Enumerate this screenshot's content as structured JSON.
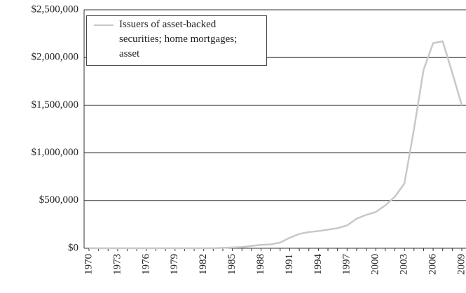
{
  "chart_data": {
    "type": "line",
    "x": [
      1970,
      1971,
      1972,
      1973,
      1974,
      1975,
      1976,
      1977,
      1978,
      1979,
      1980,
      1981,
      1982,
      1983,
      1984,
      1985,
      1986,
      1987,
      1988,
      1989,
      1990,
      1991,
      1992,
      1993,
      1994,
      1995,
      1996,
      1997,
      1998,
      1999,
      2000,
      2001,
      2002,
      2003,
      2004,
      2005,
      2006,
      2007,
      2008,
      2009
    ],
    "series": [
      {
        "name": "Issuers of asset-backed securities; home mortgages; asset",
        "color": "#c8c8c8",
        "values": [
          0,
          0,
          0,
          0,
          0,
          0,
          0,
          0,
          0,
          0,
          0,
          0,
          0,
          0,
          5000,
          8000,
          12000,
          25000,
          35000,
          40000,
          60000,
          110000,
          150000,
          170000,
          180000,
          195000,
          210000,
          240000,
          310000,
          350000,
          380000,
          450000,
          540000,
          680000,
          1250000,
          1870000,
          2150000,
          2170000,
          1840000,
          1500000
        ]
      }
    ],
    "xlim": [
      1970,
      2009
    ],
    "xticks": [
      1970,
      1973,
      1976,
      1979,
      1982,
      1985,
      1988,
      1991,
      1994,
      1997,
      2000,
      2003,
      2006,
      2009
    ],
    "ylim": [
      0,
      2500000
    ],
    "yticks": [
      {
        "value": 0,
        "label": "$0"
      },
      {
        "value": 500000,
        "label": "$500,000"
      },
      {
        "value": 1000000,
        "label": "$1,000,000"
      },
      {
        "value": 1500000,
        "label": "$1,500,000"
      },
      {
        "value": 2000000,
        "label": "$2,000,000"
      },
      {
        "value": 2500000,
        "label": "$2,500,000"
      }
    ],
    "grid": true,
    "legend": "top-left"
  }
}
